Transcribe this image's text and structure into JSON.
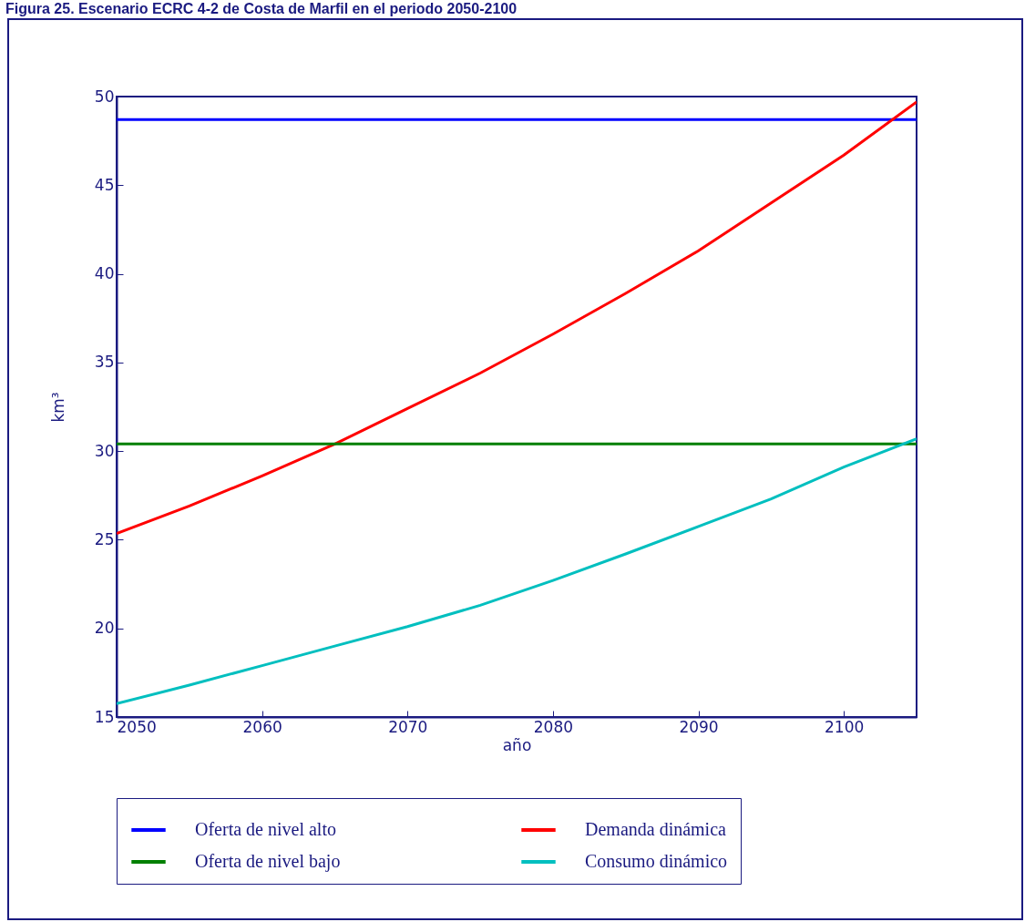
{
  "chart_data": {
    "type": "line",
    "title": "Figura 25. Escenario ECRC 4-2 de Costa de Marfil en el periodo 2050-2100",
    "xlabel": "año",
    "ylabel": "km³",
    "x": [
      2050,
      2055,
      2060,
      2065,
      2070,
      2075,
      2080,
      2085,
      2090,
      2095,
      2100,
      2105
    ],
    "series": [
      {
        "name": "Oferta de nivel alto",
        "color": "#0000ff",
        "values": [
          48.7,
          48.7,
          48.7,
          48.7,
          48.7,
          48.7,
          48.7,
          48.7,
          48.7,
          48.7,
          48.7,
          48.7
        ]
      },
      {
        "name": "Demanda dinámica",
        "color": "#ff0000",
        "values": [
          25.35,
          26.9,
          28.6,
          30.4,
          32.4,
          34.4,
          36.6,
          38.9,
          41.3,
          44.0,
          46.7,
          49.7
        ]
      },
      {
        "name": "Oferta de nivel bajo",
        "color": "#008000",
        "values": [
          30.4,
          30.4,
          30.4,
          30.4,
          30.4,
          30.4,
          30.4,
          30.4,
          30.4,
          30.4,
          30.4,
          30.4
        ]
      },
      {
        "name": "Consumo dinámico",
        "color": "#00bfbf",
        "values": [
          15.75,
          16.8,
          17.9,
          19.0,
          20.1,
          21.3,
          22.7,
          24.2,
          25.75,
          27.3,
          29.1,
          30.7
        ]
      }
    ],
    "xlim": [
      2050,
      2105
    ],
    "xticks": [
      2050,
      2060,
      2070,
      2080,
      2090,
      2100
    ],
    "ylim": [
      15,
      50
    ],
    "yticks": [
      15,
      20,
      25,
      30,
      35,
      40,
      45,
      50
    ],
    "grid": false,
    "legend": "bottom",
    "marker": "none",
    "line_style": "solid"
  }
}
